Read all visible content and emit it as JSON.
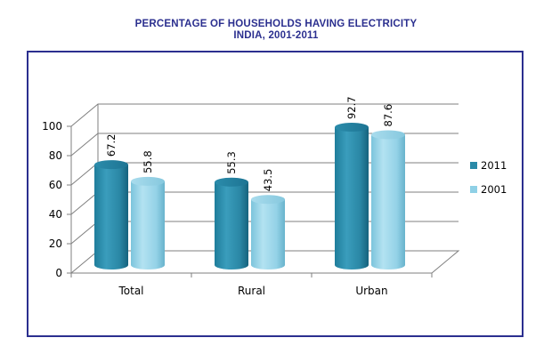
{
  "chart_data": {
    "type": "bar",
    "title_line1": "PERCENTAGE OF HOUSEHOLDS HAVING ELECTRICITY",
    "title_line2": "INDIA, 2001-2011",
    "categories": [
      "Total",
      "Rural",
      "Urban"
    ],
    "series": [
      {
        "name": "2011",
        "values": [
          67.2,
          55.3,
          92.7
        ],
        "labels": [
          "67.2",
          "55.3",
          "92.7"
        ],
        "color": "#2a8aa8"
      },
      {
        "name": "2001",
        "values": [
          55.8,
          43.5,
          87.6
        ],
        "labels": [
          "55.8",
          "43.5",
          "87.6"
        ],
        "color": "#8fd0e6"
      }
    ],
    "ylim": [
      0,
      100
    ],
    "yticks": [
      "0",
      "20",
      "40",
      "60",
      "80",
      "100"
    ],
    "ytick_values": [
      0,
      20,
      40,
      60,
      80,
      100
    ],
    "grid": true,
    "legend_position": "right"
  }
}
